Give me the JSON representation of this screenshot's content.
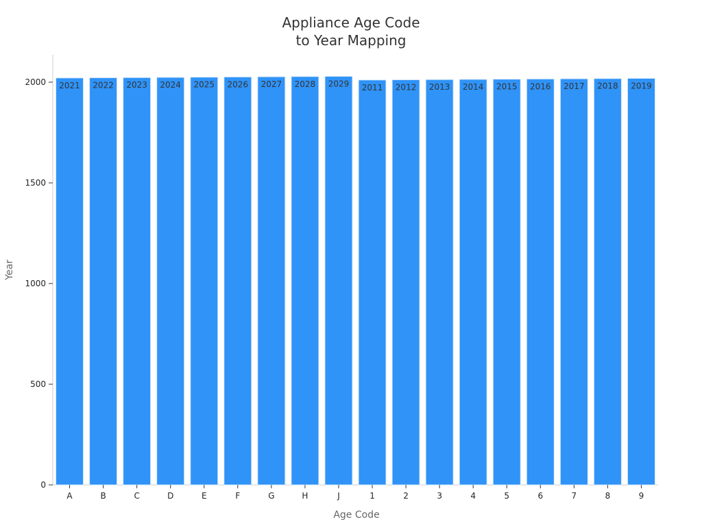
{
  "chart_data": {
    "type": "bar",
    "title": [
      "Appliance Age Code",
      "to Year Mapping"
    ],
    "xlabel": "Age Code",
    "ylabel": "Year",
    "categories": [
      "A",
      "B",
      "C",
      "D",
      "E",
      "F",
      "G",
      "H",
      "J",
      "1",
      "2",
      "3",
      "4",
      "5",
      "6",
      "7",
      "8",
      "9"
    ],
    "values": [
      2021,
      2022,
      2023,
      2024,
      2025,
      2026,
      2027,
      2028,
      2029,
      2011,
      2012,
      2013,
      2014,
      2015,
      2016,
      2017,
      2018,
      2019
    ],
    "data_labels": [
      "2021",
      "2022",
      "2023",
      "2024",
      "2025",
      "2026",
      "2027",
      "2028",
      "2029",
      "2011",
      "2012",
      "2013",
      "2014",
      "2015",
      "2016",
      "2017",
      "2018",
      "2019"
    ],
    "ylim": [
      0,
      2000
    ],
    "yticks": [
      0,
      500,
      1000,
      1500,
      2000
    ],
    "grid": false,
    "legend": "none",
    "colors": {
      "bar_fill": "#2f93f8",
      "bar_stroke": "#d8e8f8"
    }
  }
}
